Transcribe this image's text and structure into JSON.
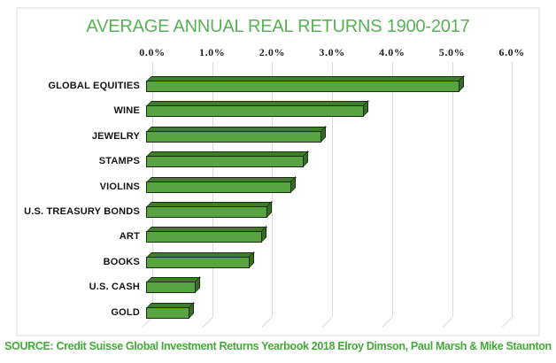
{
  "title": "AVERAGE ANNUAL REAL RETURNS 1900-2017",
  "source": "SOURCE: Credit Suisse Global Investment Returns Yearbook 2018 Elroy Dimson, Paul Marsh & Mike Staunton",
  "colors": {
    "title_green": "#58b258",
    "source_green": "#45a93a",
    "bar_face": "#58a441",
    "bar_top": "#3c7f26",
    "bar_side": "#346f20",
    "bar_outline": "#1e2a18",
    "gridline": "#dadada",
    "box_border": "#ececec",
    "label_text": "#141414"
  },
  "chart_data": {
    "type": "bar",
    "orientation": "horizontal",
    "style": "3d-extruded",
    "title": "AVERAGE ANNUAL REAL RETURNS 1900-2017",
    "categories": [
      "GLOBAL EQUITIES",
      "WINE",
      "JEWELRY",
      "STAMPS",
      "VIOLINS",
      "U.S. TREASURY BONDS",
      "ART",
      "BOOKS",
      "U.S. CASH",
      "GOLD"
    ],
    "values": [
      5.2,
      3.6,
      2.9,
      2.6,
      2.4,
      2.0,
      1.9,
      1.7,
      0.8,
      0.7
    ],
    "unit": "%",
    "x_ticks": [
      "0.0%",
      "1.0%",
      "2.0%",
      "3.0%",
      "4.0%",
      "5.0%",
      "6.0%"
    ],
    "x_tick_values": [
      0,
      1,
      2,
      3,
      4,
      5,
      6
    ],
    "xlim": [
      0,
      6
    ],
    "xlabel": "",
    "ylabel": "",
    "grid": true,
    "legend": false,
    "axis_position": "top",
    "value_axis_format": "percent-one-decimal"
  }
}
